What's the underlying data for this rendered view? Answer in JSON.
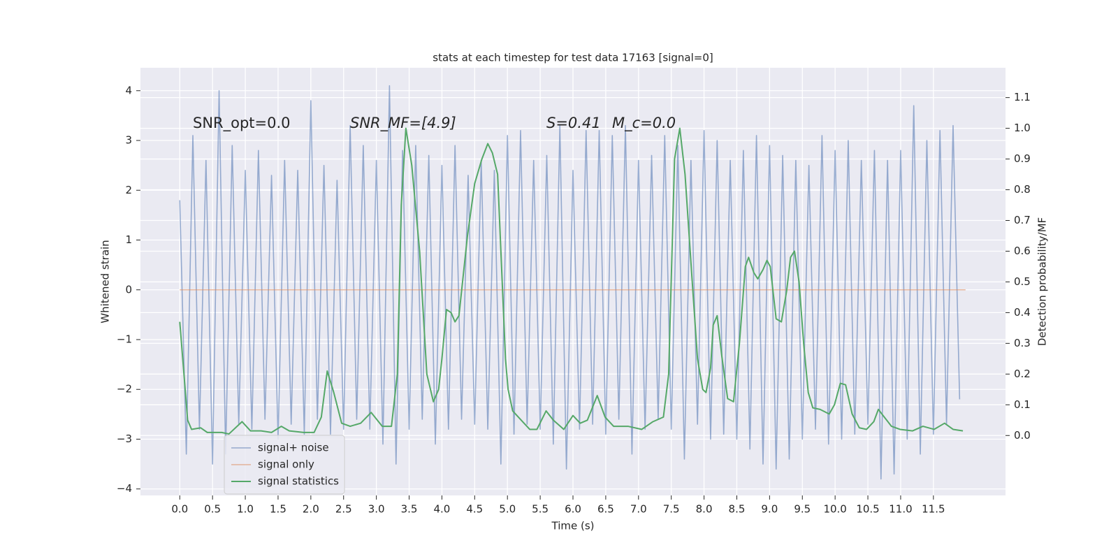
{
  "chart_data": {
    "type": "line",
    "title": "stats at each timestep for test data 17163 [signal=0]",
    "x_label": "Time (s)",
    "y_label": "Whitened strain",
    "y2_label": "Detection probability/MF",
    "annotations": [
      "SNR_opt=0.0",
      "SNR_MF=[4.9]",
      "S=0.41",
      "M_c=0.0"
    ],
    "xlim": [
      -0.6,
      12.6
    ],
    "ylim": [
      -4.13,
      4.46
    ],
    "y2lim": [
      -0.195,
      1.197
    ],
    "xticks": [
      {
        "value": 0,
        "label": "0.0"
      },
      0.5,
      {
        "value": 1,
        "label": "1.0"
      },
      1.5,
      {
        "value": 2,
        "label": "2.0"
      },
      2.5,
      {
        "value": 3,
        "label": "3.0"
      },
      3.5,
      {
        "value": 4,
        "label": "4.0"
      },
      4.5,
      {
        "value": 5,
        "label": "5.0"
      },
      5.5,
      {
        "value": 6,
        "label": "6.0"
      },
      6.5,
      {
        "value": 7,
        "label": "7.0"
      },
      7.5,
      {
        "value": 8,
        "label": "8.0"
      },
      8.5,
      {
        "value": 9,
        "label": "9.0"
      },
      9.5,
      {
        "value": 10,
        "label": "10.0"
      },
      10.5,
      {
        "value": 11,
        "label": "11.0"
      },
      11.5
    ],
    "yticks": [
      {
        "value": -4,
        "label": "−4"
      },
      {
        "value": -3,
        "label": "−3"
      },
      {
        "value": -2,
        "label": "−2"
      },
      {
        "value": -1,
        "label": "−1"
      },
      0,
      1,
      2,
      3,
      4
    ],
    "y2ticks": [
      {
        "value": 0,
        "label": "0.0"
      },
      0.1,
      0.2,
      0.3,
      0.4,
      0.5,
      0.6,
      0.7,
      0.8,
      0.9,
      {
        "value": 1,
        "label": "1.0"
      },
      1.1
    ],
    "grid": true,
    "legend": "lower left",
    "series": [
      {
        "name": "signal+ noise",
        "color": "#4c72b0",
        "x": [
          0.0,
          0.1,
          0.2,
          0.3,
          0.4,
          0.5,
          0.6,
          0.7,
          0.8,
          0.9,
          1.0,
          1.1,
          1.2,
          1.3,
          1.4,
          1.5,
          1.6,
          1.7,
          1.8,
          1.9,
          2.0,
          2.1,
          2.2,
          2.3,
          2.4,
          2.5,
          2.6,
          2.7,
          2.8,
          2.9,
          3.0,
          3.1,
          3.2,
          3.3,
          3.4,
          3.5,
          3.6,
          3.7,
          3.8,
          3.9,
          4.0,
          4.1,
          4.2,
          4.3,
          4.4,
          4.5,
          4.6,
          4.7,
          4.8,
          4.9,
          5.0,
          5.1,
          5.2,
          5.3,
          5.4,
          5.5,
          5.6,
          5.7,
          5.8,
          5.9,
          6.0,
          6.1,
          6.2,
          6.3,
          6.4,
          6.5,
          6.6,
          6.7,
          6.8,
          6.9,
          7.0,
          7.1,
          7.2,
          7.3,
          7.4,
          7.5,
          7.6,
          7.7,
          7.8,
          7.9,
          8.0,
          8.1,
          8.2,
          8.3,
          8.4,
          8.5,
          8.6,
          8.7,
          8.8,
          8.9,
          9.0,
          9.1,
          9.2,
          9.3,
          9.4,
          9.5,
          9.6,
          9.7,
          9.8,
          9.9,
          10.0,
          10.1,
          10.2,
          10.3,
          10.4,
          10.5,
          10.6,
          10.7,
          10.8,
          10.9,
          11.0,
          11.1,
          11.2,
          11.3,
          11.4,
          11.5,
          11.6,
          11.7,
          11.8,
          11.9
        ],
        "values": [
          1.8,
          -3.3,
          3.1,
          -2.8,
          2.6,
          -3.5,
          4.0,
          -3.3,
          2.9,
          -2.7,
          2.4,
          -2.8,
          2.8,
          -2.6,
          2.3,
          -3.0,
          2.6,
          -2.7,
          2.4,
          -2.9,
          3.8,
          -2.6,
          2.5,
          -2.9,
          2.2,
          -2.8,
          3.3,
          -2.6,
          2.9,
          -2.8,
          2.6,
          -3.1,
          4.1,
          -3.5,
          2.8,
          -2.8,
          2.9,
          -2.6,
          2.7,
          -3.1,
          2.5,
          -2.8,
          2.9,
          -2.6,
          2.3,
          -2.7,
          2.6,
          -2.8,
          2.4,
          -3.5,
          3.1,
          -2.9,
          3.2,
          -2.7,
          2.6,
          -2.8,
          2.7,
          -3.1,
          3.3,
          -3.6,
          2.4,
          -2.8,
          3.2,
          -2.7,
          3.2,
          -2.9,
          3.1,
          -2.6,
          3.3,
          -3.3,
          2.6,
          -2.8,
          2.7,
          -2.6,
          3.1,
          -2.8,
          2.9,
          -3.4,
          2.6,
          -2.7,
          3.2,
          -3.0,
          3.0,
          -2.9,
          2.6,
          -3.0,
          2.8,
          -3.2,
          3.1,
          -3.5,
          2.9,
          -3.6,
          2.7,
          -3.4,
          2.6,
          -3.0,
          2.5,
          -2.8,
          3.1,
          -3.1,
          2.8,
          -3.0,
          3.0,
          -2.9,
          2.6,
          -2.7,
          2.8,
          -3.8,
          2.6,
          -3.7,
          2.8,
          -3.0,
          3.7,
          -3.3,
          3.0,
          -2.9,
          3.2,
          -2.7,
          3.3,
          -2.2
        ]
      },
      {
        "name": "signal only",
        "color": "#dd8452",
        "x": [
          0.0,
          11.99
        ],
        "values": [
          0,
          0
        ]
      },
      {
        "name": "signal statistics",
        "color": "#55a868",
        "axis": "y2",
        "x": [
          0.0,
          0.12,
          0.18,
          0.32,
          0.42,
          0.64,
          0.75,
          0.95,
          1.08,
          1.24,
          1.4,
          1.55,
          1.67,
          1.89,
          2.05,
          2.16,
          2.25,
          2.35,
          2.47,
          2.6,
          2.76,
          2.92,
          3.09,
          3.23,
          3.32,
          3.38,
          3.45,
          3.54,
          3.66,
          3.77,
          3.87,
          3.95,
          4.0,
          4.07,
          4.14,
          4.2,
          4.26,
          4.39,
          4.5,
          4.61,
          4.7,
          4.77,
          4.85,
          4.91,
          4.97,
          5.01,
          5.08,
          5.21,
          5.34,
          5.45,
          5.59,
          5.7,
          5.86,
          6.0,
          6.11,
          6.22,
          6.37,
          6.49,
          6.62,
          6.84,
          7.05,
          7.22,
          7.38,
          7.46,
          7.55,
          7.63,
          7.71,
          7.82,
          7.9,
          7.98,
          8.03,
          8.1,
          8.14,
          8.2,
          8.27,
          8.36,
          8.45,
          8.54,
          8.63,
          8.68,
          8.76,
          8.82,
          8.9,
          8.96,
          9.01,
          9.1,
          9.18,
          9.26,
          9.32,
          9.38,
          9.45,
          9.52,
          9.59,
          9.66,
          9.77,
          9.91,
          9.99,
          10.08,
          10.16,
          10.26,
          10.37,
          10.48,
          10.59,
          10.66,
          10.75,
          10.86,
          10.99,
          11.18,
          11.34,
          11.51,
          11.67,
          11.8,
          11.95
        ],
        "values": [
          0.37,
          0.05,
          0.02,
          0.025,
          0.01,
          0.01,
          0.005,
          0.045,
          0.015,
          0.015,
          0.01,
          0.03,
          0.015,
          0.01,
          0.01,
          0.06,
          0.21,
          0.14,
          0.04,
          0.03,
          0.04,
          0.075,
          0.03,
          0.03,
          0.2,
          0.75,
          1.0,
          0.88,
          0.6,
          0.2,
          0.11,
          0.15,
          0.25,
          0.41,
          0.4,
          0.37,
          0.39,
          0.65,
          0.82,
          0.9,
          0.95,
          0.92,
          0.85,
          0.55,
          0.25,
          0.15,
          0.08,
          0.05,
          0.02,
          0.02,
          0.08,
          0.05,
          0.02,
          0.065,
          0.04,
          0.05,
          0.13,
          0.06,
          0.03,
          0.03,
          0.02,
          0.045,
          0.06,
          0.2,
          0.9,
          1.0,
          0.85,
          0.5,
          0.25,
          0.15,
          0.14,
          0.22,
          0.36,
          0.39,
          0.26,
          0.12,
          0.11,
          0.3,
          0.55,
          0.58,
          0.53,
          0.51,
          0.54,
          0.57,
          0.55,
          0.38,
          0.37,
          0.47,
          0.58,
          0.6,
          0.5,
          0.3,
          0.14,
          0.09,
          0.085,
          0.07,
          0.1,
          0.17,
          0.165,
          0.07,
          0.025,
          0.02,
          0.045,
          0.085,
          0.06,
          0.03,
          0.02,
          0.015,
          0.03,
          0.02,
          0.04,
          0.02,
          0.015
        ]
      }
    ]
  }
}
